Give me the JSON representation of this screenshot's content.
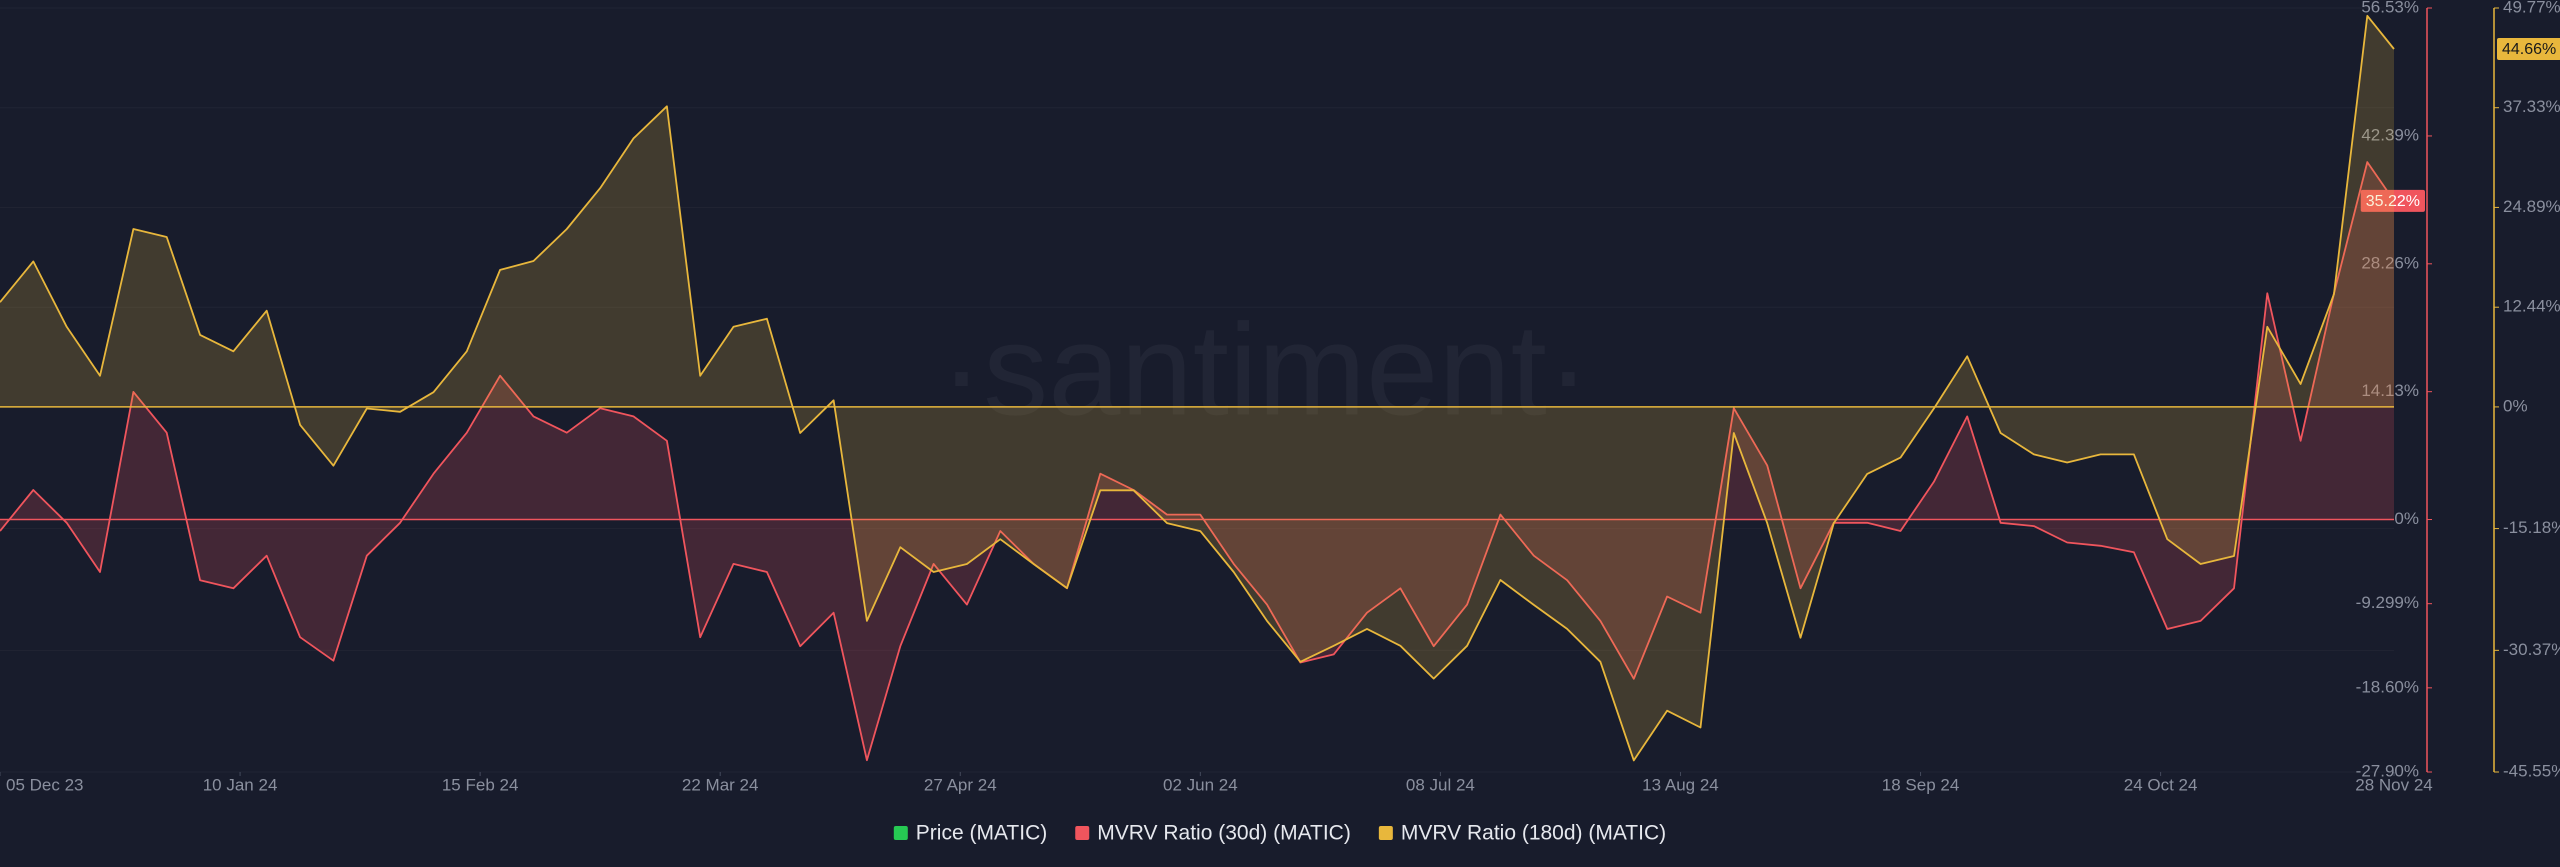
{
  "chart_data": {
    "type": "area",
    "watermark": "·santiment·",
    "x": [
      "2023-12-05",
      "2023-12-10",
      "2023-12-15",
      "2023-12-20",
      "2023-12-25",
      "2023-12-30",
      "2024-01-04",
      "2024-01-09",
      "2024-01-14",
      "2024-01-19",
      "2024-01-24",
      "2024-01-29",
      "2024-02-03",
      "2024-02-08",
      "2024-02-13",
      "2024-02-18",
      "2024-02-23",
      "2024-02-28",
      "2024-03-04",
      "2024-03-09",
      "2024-03-14",
      "2024-03-19",
      "2024-03-24",
      "2024-03-29",
      "2024-04-03",
      "2024-04-08",
      "2024-04-13",
      "2024-04-18",
      "2024-04-23",
      "2024-04-28",
      "2024-05-03",
      "2024-05-08",
      "2024-05-13",
      "2024-05-18",
      "2024-05-23",
      "2024-05-28",
      "2024-06-02",
      "2024-06-07",
      "2024-06-12",
      "2024-06-17",
      "2024-06-22",
      "2024-06-27",
      "2024-07-02",
      "2024-07-07",
      "2024-07-12",
      "2024-07-17",
      "2024-07-22",
      "2024-07-27",
      "2024-08-01",
      "2024-08-06",
      "2024-08-11",
      "2024-08-16",
      "2024-08-21",
      "2024-08-26",
      "2024-08-31",
      "2024-09-05",
      "2024-09-10",
      "2024-09-15",
      "2024-09-20",
      "2024-09-25",
      "2024-09-30",
      "2024-10-05",
      "2024-10-10",
      "2024-10-15",
      "2024-10-20",
      "2024-10-25",
      "2024-10-30",
      "2024-11-04",
      "2024-11-09",
      "2024-11-14",
      "2024-11-19",
      "2024-11-24",
      "2024-11-28"
    ],
    "xlim": [
      "2023-12-05",
      "2024-11-28"
    ],
    "xticks": [
      {
        "value": "2023-12-05",
        "label": "05 Dec 23"
      },
      {
        "value": "2024-01-10",
        "label": "10 Jan 24"
      },
      {
        "value": "2024-02-15",
        "label": "15 Feb 24"
      },
      {
        "value": "2024-03-22",
        "label": "22 Mar 24"
      },
      {
        "value": "2024-04-27",
        "label": "27 Apr 24"
      },
      {
        "value": "2024-06-02",
        "label": "02 Jun 24"
      },
      {
        "value": "2024-07-08",
        "label": "08 Jul 24"
      },
      {
        "value": "2024-08-13",
        "label": "13 Aug 24"
      },
      {
        "value": "2024-09-18",
        "label": "18 Sep 24"
      },
      {
        "value": "2024-10-24",
        "label": "24 Oct 24"
      },
      {
        "value": "2024-11-28",
        "label": "28 Nov 24"
      }
    ],
    "ylim": [
      -27.9,
      56.53
    ],
    "yticks": [
      {
        "value": 56.53,
        "label": "56.53%"
      },
      {
        "value": 42.39,
        "label": "42.39%"
      },
      {
        "value": 28.26,
        "label": "28.26%"
      },
      {
        "value": 14.13,
        "label": "14.13%"
      },
      {
        "value": 0,
        "label": "0%"
      },
      {
        "value": -9.299,
        "label": "-9.299%"
      },
      {
        "value": -18.6,
        "label": "-18.60%"
      },
      {
        "value": -27.9,
        "label": "-27.90%"
      }
    ],
    "y2lim": [
      -45.55,
      49.77
    ],
    "y2ticks": [
      {
        "value": 49.77,
        "label": "49.77%"
      },
      {
        "value": 37.33,
        "label": "37.33%"
      },
      {
        "value": 24.89,
        "label": "24.89%"
      },
      {
        "value": 12.44,
        "label": "12.44%"
      },
      {
        "value": 0,
        "label": "0%"
      },
      {
        "value": -15.18,
        "label": "-15.18%"
      },
      {
        "value": -30.37,
        "label": "-30.37%"
      },
      {
        "value": -45.55,
        "label": "-45.55%"
      }
    ],
    "grid": true,
    "legend": "bottom",
    "series": [
      {
        "name": "Price (MATIC)",
        "color": "#26c953"
      },
      {
        "name": "MVRV Ratio (30d) (MATIC)",
        "color": "#f0555d",
        "axis": "y",
        "values": [
          -1.27,
          3.26,
          -0.36,
          -5.8,
          14.1,
          9.6,
          -6.7,
          -7.6,
          -4.0,
          -13.0,
          -15.6,
          -4.0,
          -0.36,
          5.07,
          9.6,
          15.9,
          11.4,
          9.6,
          12.3,
          11.4,
          8.7,
          -13.0,
          -4.9,
          -5.8,
          -14.0,
          -10.3,
          -26.6,
          -14.0,
          -4.9,
          -9.4,
          -1.27,
          -4.9,
          -7.6,
          5.07,
          3.26,
          0.54,
          0.54,
          -4.9,
          -9.4,
          -15.8,
          -14.9,
          -10.3,
          -7.6,
          -14.0,
          -9.4,
          0.54,
          -4.0,
          -6.7,
          -11.2,
          -17.6,
          -8.5,
          -10.3,
          12.3,
          5.98,
          -7.6,
          -0.36,
          -0.36,
          -1.27,
          4.17,
          11.4,
          -0.36,
          -0.72,
          -2.54,
          -2.9,
          -3.62,
          -12.1,
          -11.2,
          -7.6,
          25.0,
          8.7,
          25.0,
          39.5,
          35.22
        ],
        "value_labels": [
          null,
          null,
          null,
          null,
          null,
          null,
          null,
          null,
          null,
          null,
          null,
          null,
          null,
          null,
          null,
          null,
          null,
          null,
          null,
          null,
          null,
          null,
          null,
          null,
          null,
          null,
          null,
          null,
          null,
          null,
          null,
          null,
          null,
          null,
          null,
          null,
          null,
          null,
          null,
          null,
          null,
          null,
          null,
          null,
          null,
          null,
          null,
          null,
          null,
          null,
          null,
          null,
          null,
          null,
          null,
          null,
          null,
          null,
          null,
          null,
          null,
          null,
          null,
          null,
          null,
          null,
          null,
          null,
          null,
          null,
          null,
          null,
          "35.22%"
        ]
      },
      {
        "name": "MVRV Ratio (180d) (MATIC)",
        "color": "#e8b73c",
        "axis": "y2",
        "values": [
          13.06,
          18.16,
          10.0,
          3.88,
          22.2,
          21.2,
          8.98,
          6.94,
          12.0,
          -2.24,
          -7.34,
          -0.2,
          -0.61,
          1.84,
          6.94,
          17.1,
          18.2,
          22.2,
          27.3,
          33.5,
          37.5,
          3.88,
          10.0,
          11.0,
          -3.26,
          0.82,
          -26.7,
          -17.5,
          -20.6,
          -19.6,
          -16.5,
          -19.6,
          -22.6,
          -10.4,
          -10.4,
          -14.5,
          -15.5,
          -20.6,
          -26.7,
          -31.8,
          -29.8,
          -27.7,
          -29.8,
          -33.9,
          -29.8,
          -21.6,
          -24.7,
          -27.7,
          -31.8,
          -44.1,
          -37.9,
          -40.0,
          -3.26,
          -14.5,
          -28.8,
          -14.5,
          -8.36,
          -6.32,
          -0.2,
          6.32,
          -3.26,
          -5.92,
          -6.94,
          -5.92,
          -5.92,
          -16.5,
          -19.6,
          -18.6,
          10.0,
          2.86,
          14.1,
          48.8,
          44.66
        ],
        "value_labels": [
          null,
          null,
          null,
          null,
          null,
          null,
          null,
          null,
          null,
          null,
          null,
          null,
          null,
          null,
          null,
          null,
          null,
          null,
          null,
          null,
          null,
          null,
          null,
          null,
          null,
          null,
          null,
          null,
          null,
          null,
          null,
          null,
          null,
          null,
          null,
          null,
          null,
          null,
          null,
          null,
          null,
          null,
          null,
          null,
          null,
          null,
          null,
          null,
          null,
          null,
          null,
          null,
          null,
          null,
          null,
          null,
          null,
          null,
          null,
          null,
          null,
          null,
          null,
          null,
          null,
          null,
          null,
          null,
          null,
          null,
          null,
          null,
          "44.66%"
        ]
      }
    ]
  }
}
